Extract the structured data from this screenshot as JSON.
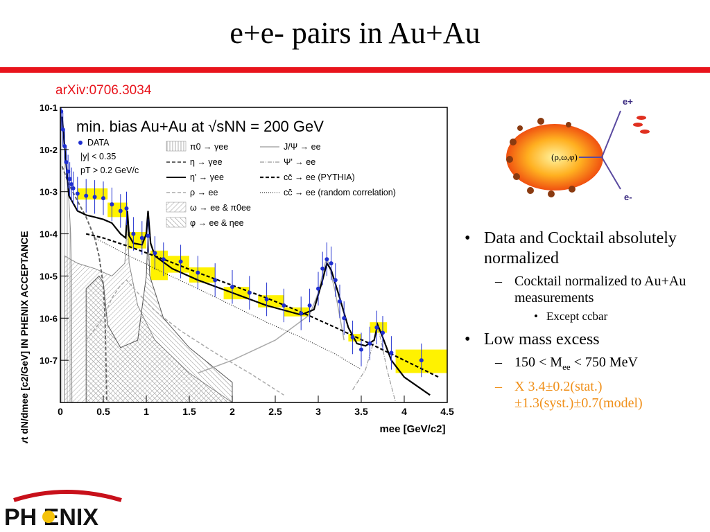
{
  "slide": {
    "title": "e+e- pairs in Au+Au",
    "reference": "arXiv:0706.3034",
    "logo_text": "PH ENIX"
  },
  "diagram": {
    "center_label": "(ρ,ω,φ)",
    "e_plus": "e+",
    "e_minus": "e-"
  },
  "bullets": {
    "b1": "Data and Cocktail absolutely normalized",
    "b1_sub": "Cocktail normalized to Au+Au measurements",
    "b1_subsub": "Except ccbar",
    "b2": "Low mass excess",
    "b2_sub_pre": "150 < M",
    "b2_sub_subscript": "ee",
    "b2_sub_post": " < 750 MeV",
    "b2_sub2_line1": "X 3.4±0.2(stat.)",
    "b2_sub2_line2": "±1.3(syst.)±0.7(model)",
    "marker": "•",
    "dash": "–"
  },
  "colors": {
    "accent_red": "#e8141c",
    "orange_text": "#f0901a",
    "data_blue": "#1f2fd0",
    "syst_yellow": "#fff200"
  },
  "chart_data": {
    "type": "line",
    "title": "min. bias Au+Au at √sNN = 200 GeV",
    "xlabel": "mee [GeV/c2]",
    "ylabel": "1/Nevt dN/dmee [c2/GeV] IN PHENIX ACCEPTANCE",
    "xlim": [
      0,
      4.5
    ],
    "ylim": [
      1e-08,
      0.1
    ],
    "yscale": "log",
    "xticks": [
      "0",
      "0.5",
      "1",
      "1.5",
      "2",
      "2.5",
      "3",
      "3.5",
      "4",
      "4.5"
    ],
    "yticks": [
      "10-1",
      "10-2",
      "10-3",
      "10-4",
      "10-5",
      "10-6",
      "10-7"
    ],
    "legend": [
      {
        "label": "DATA",
        "style": "blue-dot"
      },
      {
        "label": "|y| < 0.35",
        "style": "text"
      },
      {
        "label": "pT > 0.2 GeV/c",
        "style": "text"
      },
      {
        "label": "π0 → γee",
        "style": "hatch-vertical"
      },
      {
        "label": "η → γee",
        "style": "dashed-dark"
      },
      {
        "label": "η' → γee",
        "style": "solid-black"
      },
      {
        "label": "ρ → ee",
        "style": "dashed-light"
      },
      {
        "label": "ω → ee & π0ee",
        "style": "hatch-diagonal"
      },
      {
        "label": "φ → ee & ηee",
        "style": "hatch-cross"
      },
      {
        "label": "J/Ψ → ee",
        "style": "solid-light"
      },
      {
        "label": "Ψ' → ee",
        "style": "dashdot"
      },
      {
        "label": "cc̄ → ee (PYTHIA)",
        "style": "dashed-thick"
      },
      {
        "label": "cc̄ → ee (random correlation)",
        "style": "dotted"
      }
    ],
    "series": [
      {
        "name": "DATA",
        "x": [
          0.01,
          0.03,
          0.05,
          0.07,
          0.09,
          0.11,
          0.13,
          0.15,
          0.2,
          0.3,
          0.4,
          0.5,
          0.6,
          0.7,
          0.77,
          0.85,
          0.95,
          1.02,
          1.1,
          1.2,
          1.4,
          1.6,
          1.8,
          2.0,
          2.2,
          2.4,
          2.6,
          2.8,
          2.9,
          3.0,
          3.05,
          3.1,
          3.15,
          3.2,
          3.25,
          3.3,
          3.4,
          3.5,
          3.6,
          3.68,
          3.75,
          3.85,
          4.2
        ],
        "y": [
          0.08,
          0.03,
          0.012,
          0.005,
          0.003,
          0.002,
          0.0015,
          0.0012,
          0.0009,
          0.0008,
          0.00075,
          0.0007,
          0.0005,
          0.00035,
          0.0004,
          0.0001,
          8e-05,
          9e-05,
          3.5e-05,
          2.5e-05,
          2.2e-05,
          1.2e-05,
          8e-06,
          5.5e-06,
          4e-06,
          2.8e-06,
          2e-06,
          1.3e-06,
          2e-06,
          5e-06,
          1.5e-05,
          2.5e-05,
          2e-05,
          8e-06,
          2.5e-06,
          1e-06,
          3.5e-07,
          1.8e-07,
          2.5e-07,
          6e-07,
          4.5e-07,
          1.5e-07,
          1e-07
        ]
      },
      {
        "name": "sum cocktail",
        "x": [
          0.02,
          0.1,
          0.2,
          0.3,
          0.4,
          0.5,
          0.6,
          0.7,
          0.76,
          0.78,
          0.8,
          0.85,
          0.95,
          1.0,
          1.02,
          1.05,
          1.1,
          1.3,
          1.6,
          2.0,
          2.4,
          2.8,
          2.95,
          3.05,
          3.1,
          3.15,
          3.25,
          3.35,
          3.45,
          3.55,
          3.65,
          3.69,
          3.75,
          3.85,
          4.0,
          4.3
        ],
        "y": [
          0.06,
          0.0008,
          0.00035,
          0.00028,
          0.00025,
          0.00022,
          0.00018,
          0.0001,
          8e-05,
          0.00035,
          9e-05,
          6e-05,
          5.5e-05,
          0.0001,
          0.00035,
          6e-05,
          3e-05,
          1.5e-05,
          8e-06,
          4e-06,
          2e-06,
          1.2e-06,
          1.6e-06,
          8e-06,
          2e-05,
          1.4e-05,
          3e-06,
          6e-07,
          2.5e-07,
          2.2e-07,
          3e-07,
          7e-07,
          3.5e-07,
          1e-07,
          4e-08,
          1.5e-08
        ]
      },
      {
        "name": "cc̄ → ee (PYTHIA)",
        "x": [
          0.3,
          0.5,
          0.8,
          1.2,
          1.6,
          2.0,
          2.4,
          2.8,
          3.2,
          3.6,
          4.0,
          4.4
        ],
        "y": [
          0.0001,
          8e-05,
          5e-05,
          2.5e-05,
          1.2e-05,
          6e-06,
          3e-06,
          1.4e-06,
          6e-07,
          2.5e-07,
          1e-07,
          4e-08
        ]
      },
      {
        "name": "cc̄ → ee (random correlation)",
        "x": [
          0.4,
          0.8,
          1.2,
          1.6,
          2.0,
          2.4,
          2.8,
          3.2,
          3.5
        ],
        "y": [
          8e-05,
          3e-05,
          1.2e-05,
          5e-06,
          2e-06,
          8e-07,
          3.5e-07,
          1.4e-07,
          6e-08
        ]
      },
      {
        "name": "π0 → γee",
        "x": [
          0.005,
          0.02,
          0.05,
          0.08,
          0.1,
          0.12,
          0.13,
          0.135
        ],
        "y": [
          0.08,
          0.04,
          0.01,
          0.002,
          0.0006,
          0.0001,
          1e-05,
          1e-08
        ]
      },
      {
        "name": "η → γee",
        "x": [
          0.02,
          0.1,
          0.2,
          0.3,
          0.4,
          0.45,
          0.5,
          0.52,
          0.54
        ],
        "y": [
          0.004,
          0.0015,
          0.0006,
          0.00025,
          8e-05,
          3e-05,
          6e-06,
          1e-06,
          1e-08
        ]
      },
      {
        "name": "ρ → ee",
        "x": [
          0.3,
          0.5,
          0.6,
          0.7,
          0.77,
          0.9,
          1.1,
          1.4,
          1.8,
          2.2,
          2.6
        ],
        "y": [
          3e-07,
          1e-06,
          3e-06,
          6e-06,
          8e-06,
          4e-06,
          1.5e-06,
          5e-07,
          1.5e-07,
          5e-08,
          1.5e-08
        ]
      },
      {
        "name": "ω → ee & π0ee",
        "x": [
          0.05,
          0.2,
          0.4,
          0.6,
          0.75,
          0.78,
          0.8,
          0.9,
          1.1,
          1.5,
          2.0
        ],
        "y": [
          3e-05,
          2e-05,
          1.5e-05,
          1e-05,
          2e-05,
          0.0002,
          2e-05,
          2e-06,
          3e-07,
          5e-08,
          1e-08
        ]
      },
      {
        "name": "φ → ee & ηee",
        "x": [
          0.3,
          0.45,
          0.5,
          0.55,
          0.7,
          0.9,
          1.0,
          1.02,
          1.04,
          1.2,
          1.5,
          2.0
        ],
        "y": [
          5e-06,
          1e-05,
          7e-06,
          7e-07,
          2e-07,
          3e-07,
          1e-05,
          0.0001,
          1e-05,
          1e-06,
          2e-07,
          3e-08
        ]
      },
      {
        "name": "J/Ψ → ee",
        "x": [
          1.6,
          2.0,
          2.5,
          2.9,
          3.0,
          3.08,
          3.1,
          3.12,
          3.2,
          3.3
        ],
        "y": [
          5e-08,
          1e-07,
          3e-07,
          1.2e-06,
          4e-06,
          2e-05,
          2.5e-05,
          2e-05,
          4e-06,
          3e-07
        ]
      },
      {
        "name": "Ψ' → ee",
        "x": [
          3.4,
          3.55,
          3.65,
          3.69,
          3.73,
          3.8,
          3.9
        ],
        "y": [
          2e-08,
          6e-08,
          3e-07,
          6e-07,
          3e-07,
          6e-08,
          1e-08
        ]
      }
    ],
    "systematic_boxes": [
      {
        "x": [
          0.2,
          0.55
        ],
        "y": [
          0.00065,
          0.0012
        ]
      },
      {
        "x": [
          0.55,
          0.78
        ],
        "y": [
          0.00025,
          0.00055
        ]
      },
      {
        "x": [
          0.78,
          1.0
        ],
        "y": [
          4.5e-05,
          0.00011
        ]
      },
      {
        "x": [
          1.05,
          1.25
        ],
        "y": [
          8e-06,
          4e-05
        ]
      },
      {
        "x": [
          1.25,
          1.5
        ],
        "y": [
          1.2e-05,
          3e-05
        ]
      },
      {
        "x": [
          1.5,
          1.8
        ],
        "y": [
          7e-06,
          1.6e-05
        ]
      },
      {
        "x": [
          1.9,
          2.2
        ],
        "y": [
          2.8e-06,
          5.5e-06
        ]
      },
      {
        "x": [
          2.3,
          2.6
        ],
        "y": [
          1.8e-06,
          3.5e-06
        ]
      },
      {
        "x": [
          2.6,
          2.9
        ],
        "y": [
          1.1e-06,
          1.8e-06
        ]
      },
      {
        "x": [
          3.35,
          3.5
        ],
        "y": [
          2.8e-07,
          4.2e-07
        ]
      },
      {
        "x": [
          3.6,
          3.8
        ],
        "y": [
          4.5e-07,
          8e-07
        ]
      },
      {
        "x": [
          3.9,
          4.5
        ],
        "y": [
          5e-08,
          1.8e-07
        ]
      }
    ]
  }
}
